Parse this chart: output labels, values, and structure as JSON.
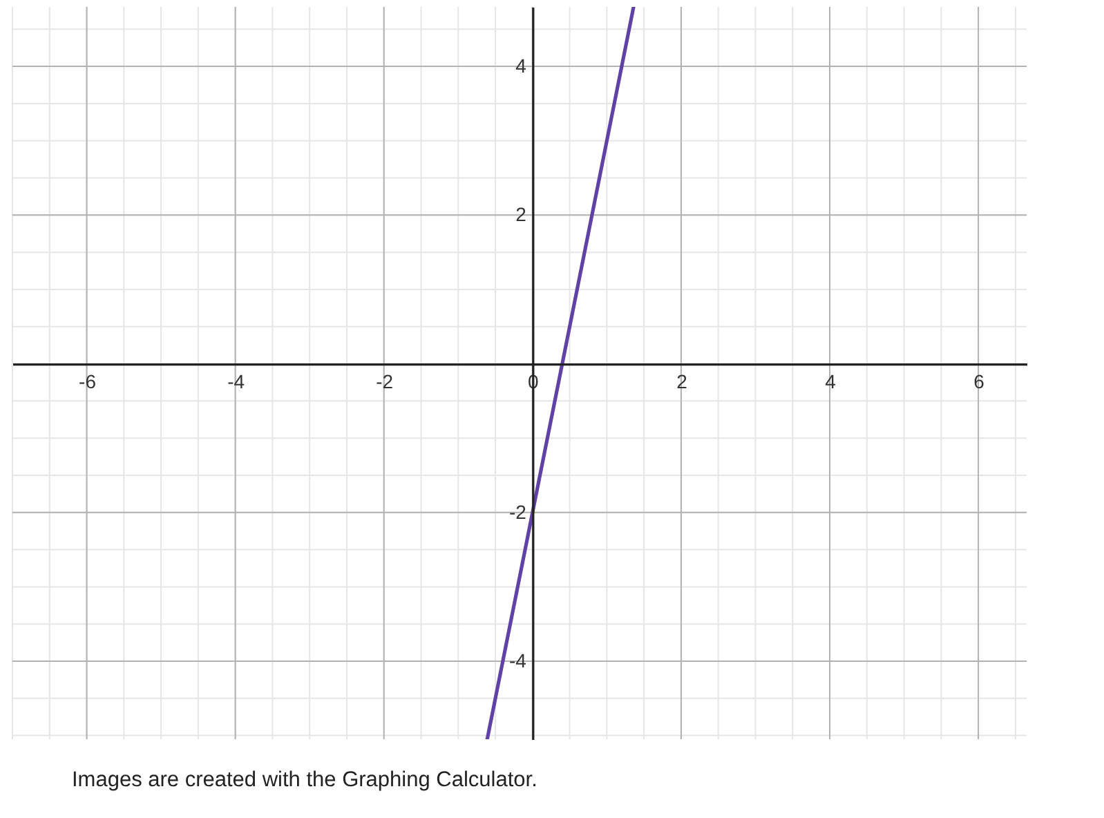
{
  "chart_data": {
    "type": "line",
    "annotations": [
      "Images are created with the Graphing Calculator."
    ],
    "x": [
      -0.61,
      1.36
    ],
    "series": [
      {
        "color": "#6042a6",
        "values": [
          -5.05,
          4.8
        ]
      }
    ],
    "xlim": [
      -7,
      6.65
    ],
    "ylim": [
      -5.05,
      4.8
    ],
    "xticks": [
      -6,
      -4,
      -2,
      0,
      2,
      4,
      6
    ],
    "yticks": [
      -4,
      -2,
      2,
      4
    ],
    "grid": true
  }
}
